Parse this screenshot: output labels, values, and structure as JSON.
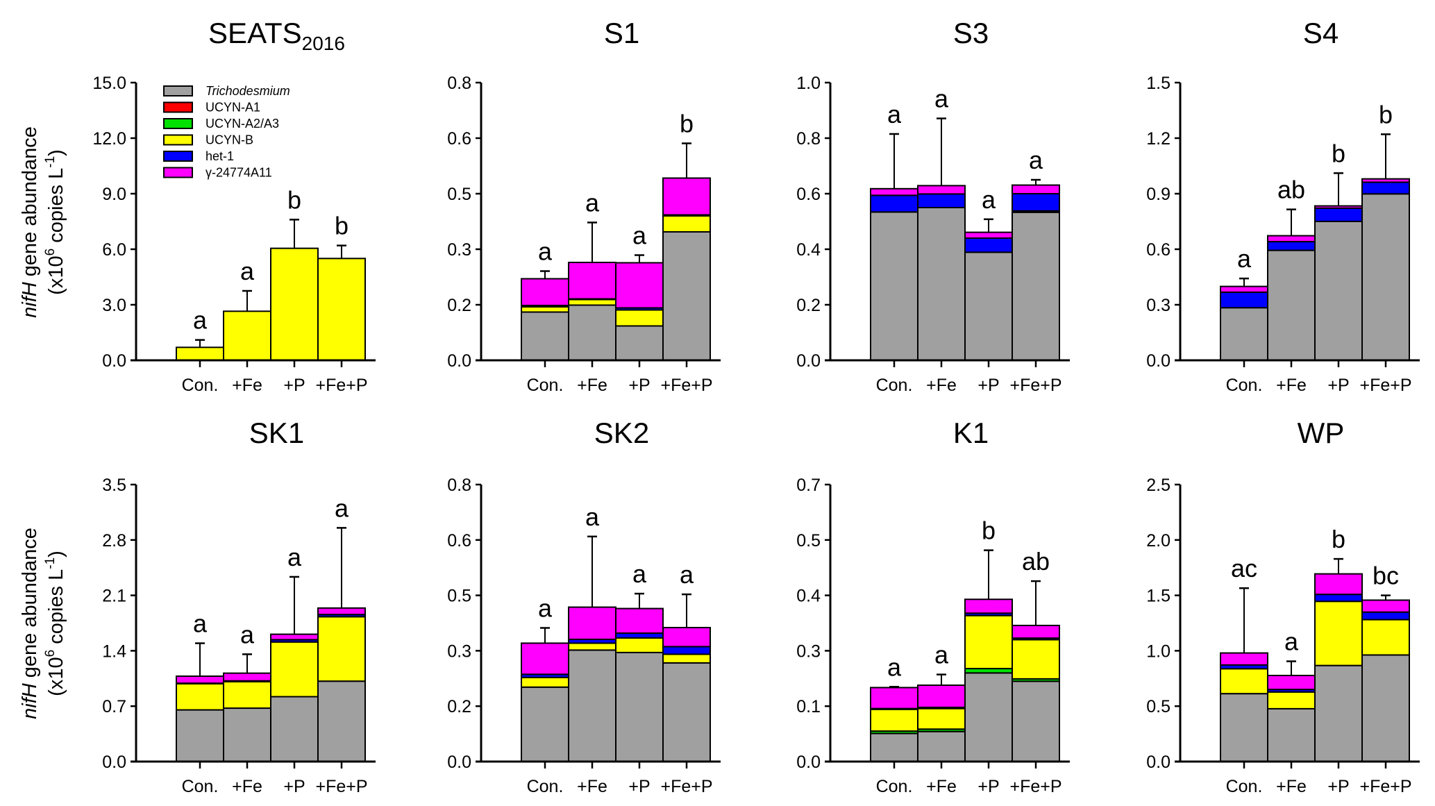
{
  "y_label_line1_italic": "nifH",
  "y_label_line1_rest": " gene abundance",
  "y_label_line2_pre": "(x10",
  "y_label_line2_sup1": "6",
  "y_label_line2_mid": " copies L",
  "y_label_line2_sup2": "-1",
  "y_label_line2_post": ")",
  "legend": [
    {
      "label": "Trichodesmium",
      "color": "#a0a0a0",
      "italic": true
    },
    {
      "label": "UCYN-A1",
      "color": "#ff0000"
    },
    {
      "label": "UCYN-A2/A3",
      "color": "#00e000"
    },
    {
      "label": "UCYN-B",
      "color": "#ffff00"
    },
    {
      "label": "het-1",
      "color": "#0000ff"
    },
    {
      "label": "γ-24774A11",
      "color": "#ff00ff"
    }
  ],
  "chart_data": [
    {
      "type": "bar",
      "stacked": true,
      "title": "SEATS",
      "title_sub": "2016",
      "ylim": [
        0,
        15
      ],
      "yticks": [
        "0.0",
        "3.0",
        "6.0",
        "9.0",
        "12.0",
        "15.0"
      ],
      "categories": [
        "Con.",
        "+Fe",
        "+P",
        "+Fe+P"
      ],
      "series": [
        {
          "name": "Trichodesmium",
          "values": [
            0,
            0,
            0,
            0
          ]
        },
        {
          "name": "UCYN-A1",
          "values": [
            0,
            0,
            0,
            0
          ]
        },
        {
          "name": "UCYN-A2/A3",
          "values": [
            0,
            0,
            0,
            0
          ]
        },
        {
          "name": "UCYN-B",
          "values": [
            0.7,
            2.65,
            6.05,
            5.5
          ]
        },
        {
          "name": "het-1",
          "values": [
            0,
            0,
            0,
            0
          ]
        },
        {
          "name": "γ-24774A11",
          "values": [
            0,
            0,
            0,
            0
          ]
        }
      ],
      "error_top": [
        1.1,
        3.75,
        7.6,
        6.2
      ],
      "letters": [
        "a",
        "a",
        "b",
        "b"
      ],
      "legend": "top-left"
    },
    {
      "type": "bar",
      "stacked": true,
      "title": "S1",
      "ylim": [
        0,
        0.8
      ],
      "yticks": [
        "0.0",
        "0.2",
        "0.3",
        "0.5",
        "0.6",
        "0.8"
      ],
      "categories": [
        "Con.",
        "+Fe",
        "+P",
        "+Fe+P"
      ],
      "series": [
        {
          "name": "Trichodesmium",
          "values": [
            0.139,
            0.159,
            0.099,
            0.37
          ]
        },
        {
          "name": "UCYN-A1",
          "values": [
            0,
            0,
            0,
            0
          ]
        },
        {
          "name": "UCYN-A2/A3",
          "values": [
            0,
            0,
            0,
            0
          ]
        },
        {
          "name": "UCYN-B",
          "values": [
            0.015,
            0.016,
            0.046,
            0.046
          ]
        },
        {
          "name": "het-1",
          "values": [
            0.004,
            0.002,
            0.006,
            0.003
          ]
        },
        {
          "name": "γ-24774A11",
          "values": [
            0.077,
            0.105,
            0.13,
            0.106
          ]
        }
      ],
      "error_top": [
        0.257,
        0.397,
        0.303,
        0.625
      ],
      "letters": [
        "a",
        "a",
        "a",
        "b"
      ]
    },
    {
      "type": "bar",
      "stacked": true,
      "title": "S3",
      "ylim": [
        0,
        1.0
      ],
      "yticks": [
        "0.0",
        "0.2",
        "0.4",
        "0.6",
        "0.8",
        "1.0"
      ],
      "categories": [
        "Con.",
        "+Fe",
        "+P",
        "+Fe+P"
      ],
      "series": [
        {
          "name": "Trichodesmium",
          "values": [
            0.534,
            0.55,
            0.389,
            0.533
          ]
        },
        {
          "name": "UCYN-A1",
          "values": [
            0,
            0,
            0,
            0
          ]
        },
        {
          "name": "UCYN-A2/A3",
          "values": [
            0,
            0,
            0,
            0
          ]
        },
        {
          "name": "UCYN-B",
          "values": [
            0,
            0,
            0,
            0.005
          ]
        },
        {
          "name": "het-1",
          "values": [
            0.06,
            0.049,
            0.051,
            0.062
          ]
        },
        {
          "name": "γ-24774A11",
          "values": [
            0.024,
            0.03,
            0.021,
            0.031
          ]
        }
      ],
      "error_top": [
        0.815,
        0.871,
        0.508,
        0.65
      ],
      "letters": [
        "a",
        "a",
        "a",
        "a"
      ]
    },
    {
      "type": "bar",
      "stacked": true,
      "title": "S4",
      "ylim": [
        0,
        1.5
      ],
      "yticks": [
        "0.0",
        "0.3",
        "0.6",
        "0.9",
        "1.2",
        "1.5"
      ],
      "categories": [
        "Con.",
        "+Fe",
        "+P",
        "+Fe+P"
      ],
      "series": [
        {
          "name": "Trichodesmium",
          "values": [
            0.284,
            0.594,
            0.75,
            0.899
          ]
        },
        {
          "name": "UCYN-A1",
          "values": [
            0,
            0,
            0,
            0
          ]
        },
        {
          "name": "UCYN-A2/A3",
          "values": [
            0,
            0,
            0,
            0
          ]
        },
        {
          "name": "UCYN-B",
          "values": [
            0,
            0,
            0,
            0
          ]
        },
        {
          "name": "het-1",
          "values": [
            0.084,
            0.047,
            0.072,
            0.063
          ]
        },
        {
          "name": "γ-24774A11",
          "values": [
            0.031,
            0.032,
            0.012,
            0.018
          ]
        }
      ],
      "error_top": [
        0.442,
        0.815,
        1.011,
        1.221
      ],
      "letters": [
        "a",
        "ab",
        "b",
        "b"
      ]
    },
    {
      "type": "bar",
      "stacked": true,
      "title": "SK1",
      "ylim": [
        0,
        3.5
      ],
      "yticks": [
        "0.0",
        "0.7",
        "1.4",
        "2.1",
        "2.8",
        "3.5"
      ],
      "categories": [
        "Con.",
        "+Fe",
        "+P",
        "+Fe+P"
      ],
      "series": [
        {
          "name": "Trichodesmium",
          "values": [
            0.653,
            0.675,
            0.82,
            1.016
          ]
        },
        {
          "name": "UCYN-A1",
          "values": [
            0,
            0,
            0,
            0
          ]
        },
        {
          "name": "UCYN-A2/A3",
          "values": [
            0,
            0,
            0,
            0
          ]
        },
        {
          "name": "UCYN-B",
          "values": [
            0.331,
            0.335,
            0.691,
            0.814
          ]
        },
        {
          "name": "het-1",
          "values": [
            0.006,
            0.01,
            0.029,
            0.028
          ]
        },
        {
          "name": "γ-24774A11",
          "values": [
            0.089,
            0.097,
            0.069,
            0.082
          ]
        }
      ],
      "error_top": [
        1.495,
        1.356,
        2.334,
        2.953
      ],
      "letters": [
        "a",
        "a",
        "a",
        "a"
      ]
    },
    {
      "type": "bar",
      "stacked": true,
      "title": "SK2",
      "ylim": [
        0,
        0.8
      ],
      "yticks": [
        "0.0",
        "0.2",
        "0.3",
        "0.5",
        "0.6",
        "0.8"
      ],
      "categories": [
        "Con.",
        "+Fe",
        "+P",
        "+Fe+P"
      ],
      "series": [
        {
          "name": "Trichodesmium",
          "values": [
            0.215,
            0.322,
            0.315,
            0.285
          ]
        },
        {
          "name": "UCYN-A1",
          "values": [
            0,
            0,
            0,
            0
          ]
        },
        {
          "name": "UCYN-A2/A3",
          "values": [
            0,
            0,
            0,
            0
          ]
        },
        {
          "name": "UCYN-B",
          "values": [
            0.028,
            0.02,
            0.042,
            0.025
          ]
        },
        {
          "name": "het-1",
          "values": [
            0.009,
            0.011,
            0.014,
            0.022
          ]
        },
        {
          "name": "γ-24774A11",
          "values": [
            0.09,
            0.093,
            0.071,
            0.055
          ]
        }
      ],
      "error_top": [
        0.386,
        0.65,
        0.485,
        0.483
      ],
      "letters": [
        "a",
        "a",
        "a",
        "a"
      ]
    },
    {
      "type": "bar",
      "stacked": true,
      "title": "K1",
      "ylim": [
        0,
        0.7
      ],
      "yticks": [
        "0.0",
        "0.1",
        "0.3",
        "0.4",
        "0.5",
        "0.7"
      ],
      "categories": [
        "Con.",
        "+Fe",
        "+P",
        "+Fe+P"
      ],
      "series": [
        {
          "name": "Trichodesmium",
          "values": [
            0.071,
            0.076,
            0.224,
            0.203
          ]
        },
        {
          "name": "UCYN-A1",
          "values": [
            0,
            0,
            0,
            0
          ]
        },
        {
          "name": "UCYN-A2/A3",
          "values": [
            0.006,
            0.006,
            0.011,
            0.006
          ]
        },
        {
          "name": "UCYN-B",
          "values": [
            0.055,
            0.052,
            0.134,
            0.099
          ]
        },
        {
          "name": "het-1",
          "values": [
            0.002,
            0.003,
            0.006,
            0.004
          ]
        },
        {
          "name": "γ-24774A11",
          "values": [
            0.053,
            0.056,
            0.035,
            0.032
          ]
        }
      ],
      "error_top": [
        0.189,
        0.22,
        0.534,
        0.456
      ],
      "letters": [
        "a",
        "a",
        "b",
        "ab"
      ]
    },
    {
      "type": "bar",
      "stacked": true,
      "title": "WP",
      "ylim": [
        0,
        2.5
      ],
      "yticks": [
        "0.0",
        "0.5",
        "1.0",
        "1.5",
        "2.0",
        "2.5"
      ],
      "categories": [
        "Con.",
        "+Fe",
        "+P",
        "+Fe+P"
      ],
      "series": [
        {
          "name": "Trichodesmium",
          "values": [
            0.613,
            0.477,
            0.867,
            0.962
          ]
        },
        {
          "name": "UCYN-A1",
          "values": [
            0,
            0,
            0,
            0
          ]
        },
        {
          "name": "UCYN-A2/A3",
          "values": [
            0,
            0,
            0,
            0
          ]
        },
        {
          "name": "UCYN-B",
          "values": [
            0.225,
            0.151,
            0.579,
            0.319
          ]
        },
        {
          "name": "het-1",
          "values": [
            0.034,
            0.023,
            0.063,
            0.068
          ]
        },
        {
          "name": "γ-24774A11",
          "values": [
            0.108,
            0.126,
            0.185,
            0.108
          ]
        }
      ],
      "error_top": [
        1.565,
        0.905,
        1.829,
        1.5
      ],
      "letters": [
        "ac",
        "a",
        "b",
        "bc"
      ]
    }
  ]
}
